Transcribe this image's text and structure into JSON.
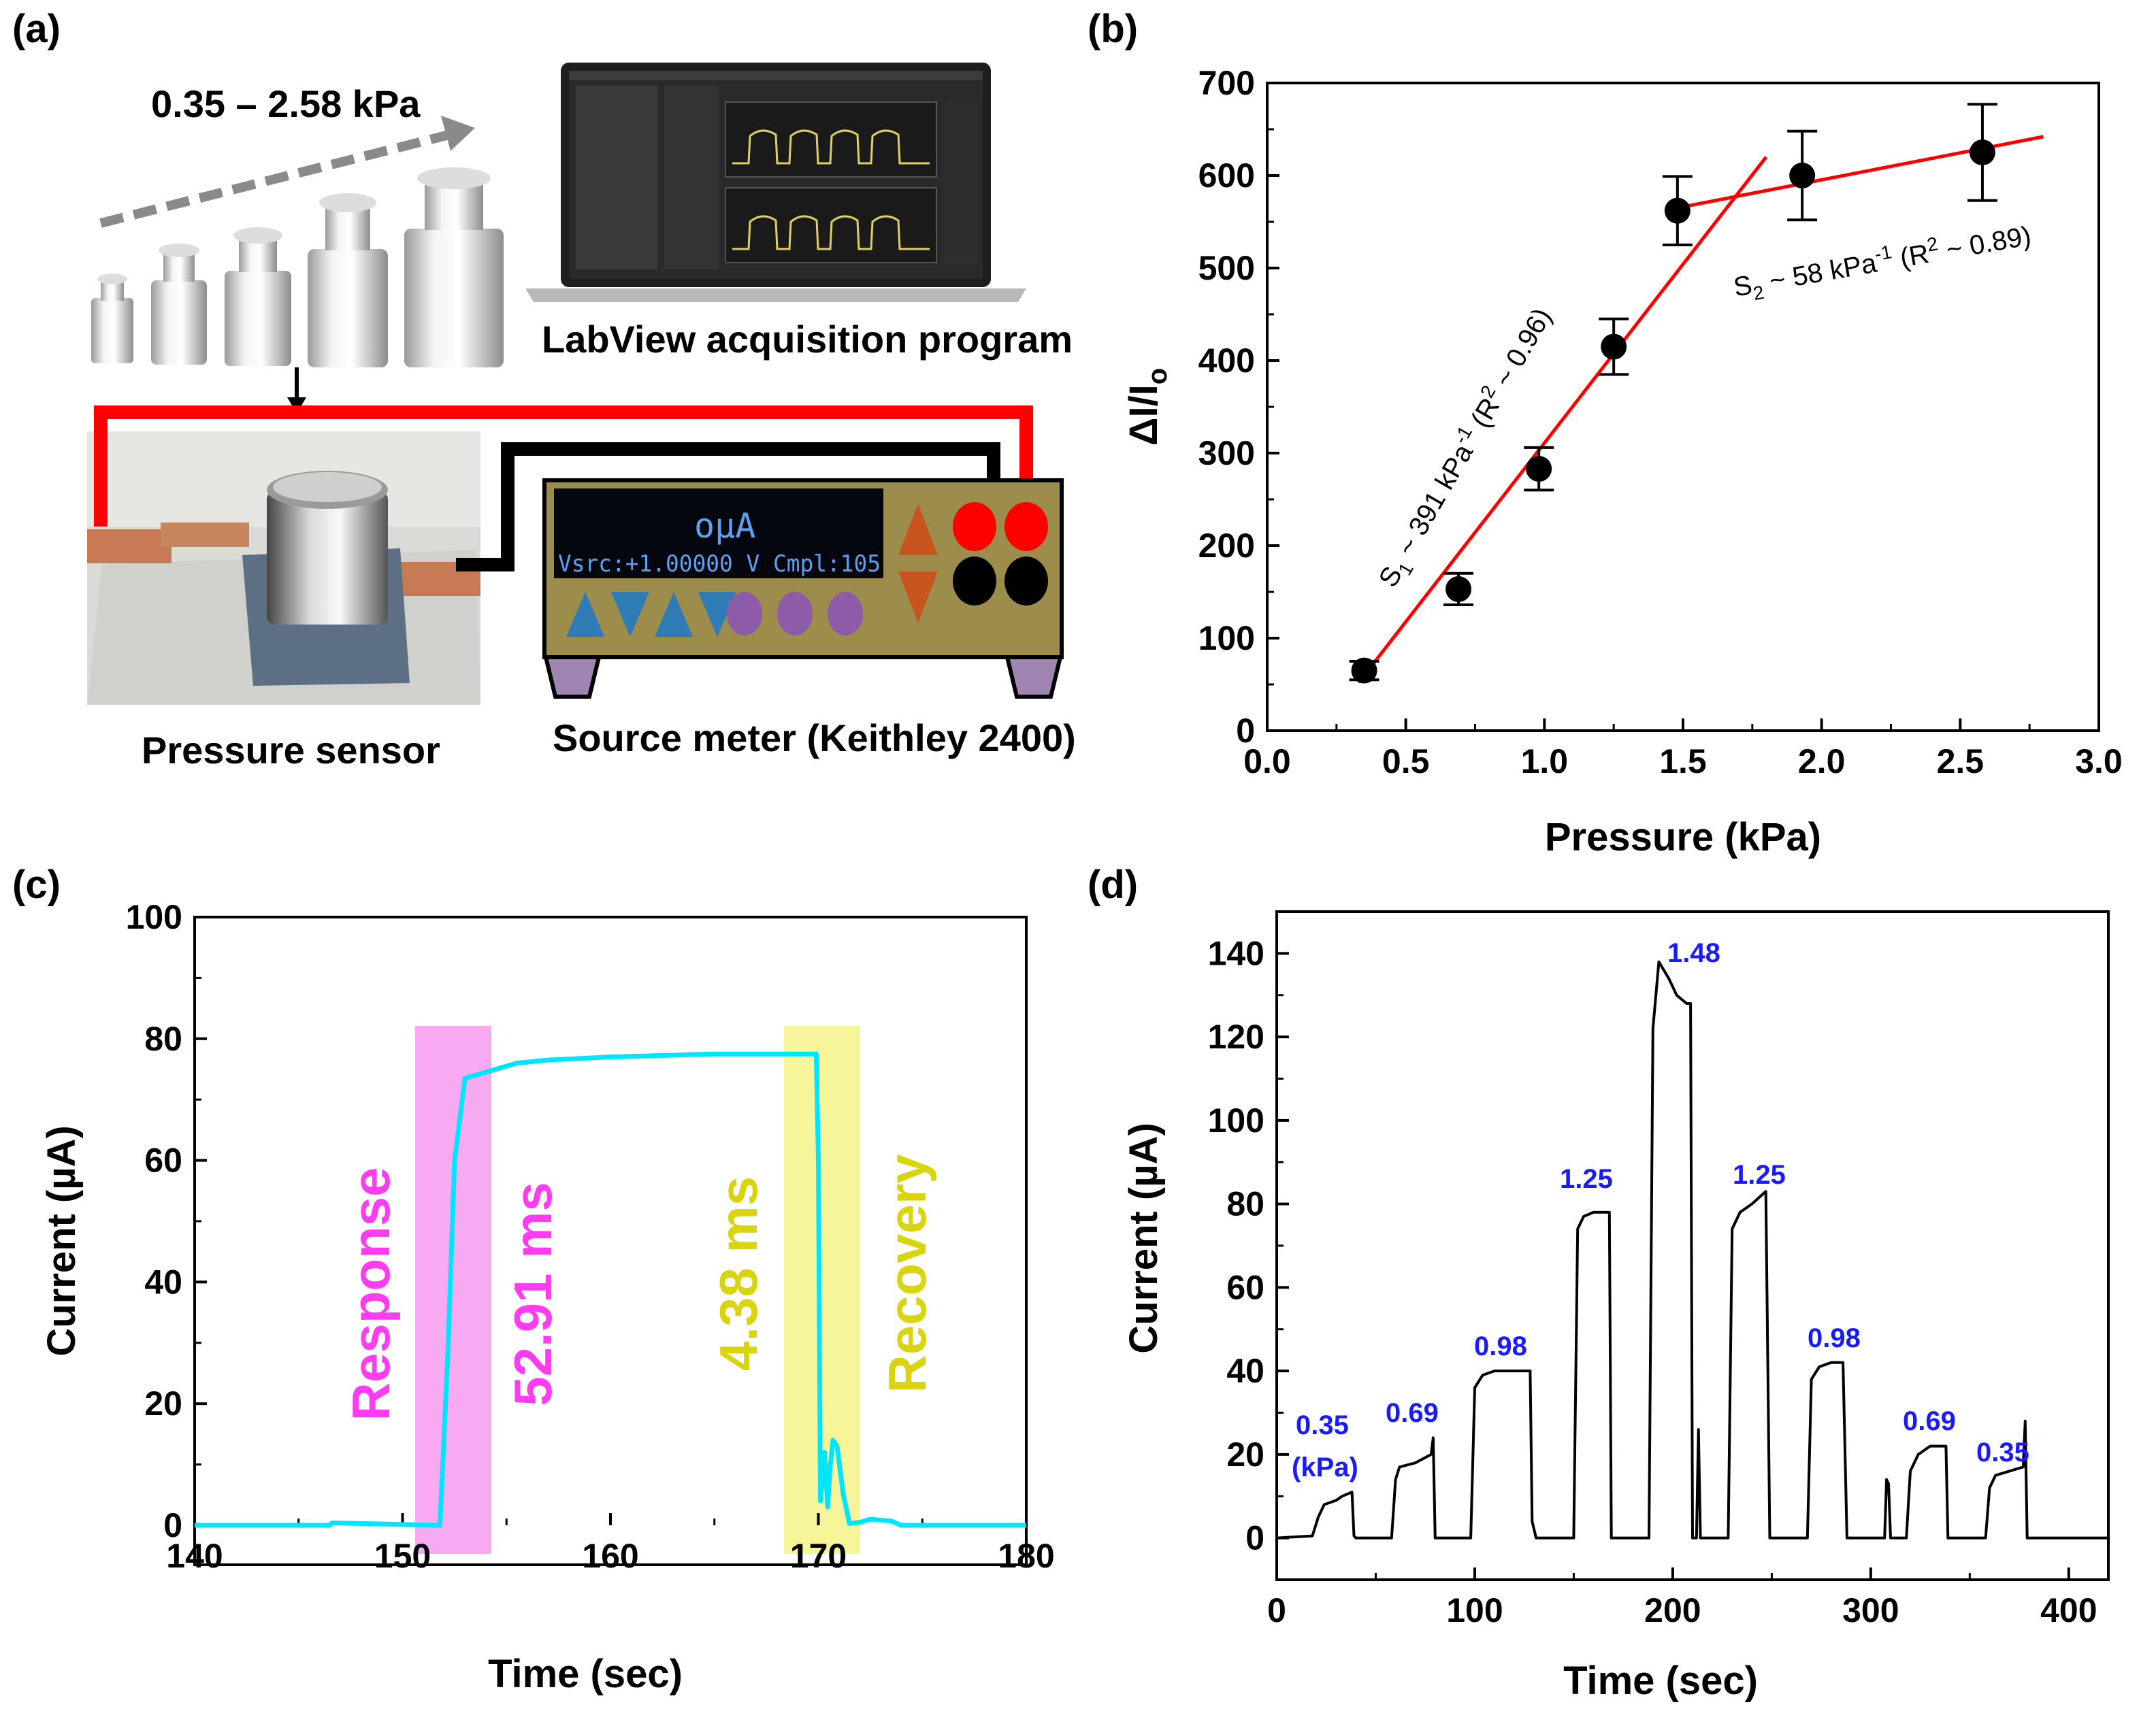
{
  "panel_labels": [
    "(a)",
    "(b)",
    "(c)",
    "(d)"
  ],
  "setup": {
    "pressure_range": "0.35 – 2.58 kPa",
    "labview_caption": "LabView acquisition program",
    "sensor_caption": "Pressure sensor",
    "meter_caption": "Source meter (Keithley 2400)",
    "meter_display_top": "oµA",
    "meter_display_bottom": "Vsrc:+1.00000 V  Cmpl:105"
  },
  "chart_data": [
    {
      "id": "b",
      "type": "scatter",
      "xlabel": "Pressure (kPa)",
      "ylabel": "ΔI/I",
      "ylabel_sub": "o",
      "xlim": [
        0,
        3.0
      ],
      "ylim": [
        0,
        700
      ],
      "xticks": [
        "0.0",
        "0.5",
        "1.0",
        "1.5",
        "2.0",
        "2.5",
        "3.0"
      ],
      "yticks": [
        "0",
        "100",
        "200",
        "300",
        "400",
        "500",
        "600",
        "700"
      ],
      "x": [
        0.35,
        0.69,
        0.98,
        1.25,
        1.48,
        1.93,
        2.58
      ],
      "y": [
        65,
        153,
        283,
        415,
        562,
        600,
        625
      ],
      "yerr": [
        10,
        17,
        23,
        30,
        37,
        48,
        52
      ],
      "fits": [
        {
          "name": "S1",
          "x": [
            0.33,
            1.8
          ],
          "y": [
            52,
            620
          ]
        },
        {
          "name": "S2",
          "x": [
            1.48,
            2.8
          ],
          "y": [
            565,
            642
          ]
        }
      ],
      "annotations": {
        "s1_main": "S",
        "s1_sub": "1",
        "s1_mid": " ~ 391 kPa",
        "s1_sup": "-1",
        "s1_r": " (R",
        "s1_r_sup": "2",
        "s1_end": " ~ 0.96)",
        "s2_main": "S",
        "s2_sub": "2",
        "s2_mid": " ~ 58 kPa",
        "s2_sup": "-1",
        "s2_r": " (R",
        "s2_r_sup": "2",
        "s2_end": " ~ 0.89)"
      }
    },
    {
      "id": "c",
      "type": "line",
      "xlabel": "Time (sec)",
      "ylabel": "Current (µA)",
      "xlim": [
        140,
        180
      ],
      "ylim": [
        0,
        100
      ],
      "xticks": [
        "140",
        "150",
        "160",
        "170",
        "180"
      ],
      "yticks": [
        "0",
        "20",
        "40",
        "60",
        "80",
        "100"
      ],
      "x": [
        140,
        146.5,
        146.6,
        151.8,
        152.2,
        152.5,
        153.0,
        154,
        155.5,
        157,
        160,
        165,
        169.9,
        170.0,
        170.1,
        170.3,
        170.45,
        170.55,
        170.7,
        170.9,
        171.2,
        171.5,
        172,
        172.5,
        173.5,
        174,
        180
      ],
      "y": [
        0,
        0,
        0.4,
        0,
        30,
        60,
        73.5,
        74.5,
        76,
        76.5,
        77,
        77.5,
        77.5,
        60,
        4,
        12,
        3,
        9,
        14,
        13,
        5,
        0.3,
        0.5,
        1,
        0.7,
        0,
        0
      ],
      "color": "#00e5ff",
      "response_label": "Response",
      "response_time": "52.91 ms",
      "recovery_label": "Recovery",
      "recovery_time": "4.38 ms"
    },
    {
      "id": "d",
      "type": "line",
      "xlabel": "Time (sec)",
      "ylabel": "Current (µA)",
      "xlim": [
        0,
        420
      ],
      "ylim": [
        -10,
        150
      ],
      "xticks": [
        "0",
        "100",
        "200",
        "300",
        "400"
      ],
      "yticks": [
        "0",
        "20",
        "40",
        "60",
        "80",
        "100",
        "120",
        "140"
      ],
      "x": [
        0,
        18,
        21,
        24,
        30,
        33,
        38,
        39,
        40,
        58,
        60,
        62,
        70,
        78,
        79,
        80,
        98,
        100,
        104,
        110,
        120,
        128,
        129,
        130,
        131,
        132,
        150,
        152,
        155,
        160,
        168,
        169,
        170,
        188,
        190,
        193,
        198,
        202,
        207,
        209,
        210,
        212,
        213,
        214,
        215,
        228,
        230,
        234,
        240,
        247,
        249,
        250,
        268,
        270,
        274,
        280,
        286,
        288,
        289,
        307,
        308,
        309,
        310,
        318,
        320,
        324,
        330,
        338,
        339,
        340,
        358,
        360,
        363,
        370,
        377,
        378,
        379,
        380,
        420
      ],
      "y": [
        0,
        0.5,
        5,
        8,
        9,
        10,
        11,
        0.5,
        0,
        0,
        14,
        17,
        18,
        20,
        24,
        0,
        0,
        36,
        39,
        40,
        40,
        40,
        4,
        2,
        0,
        0,
        0,
        74,
        77,
        78,
        78,
        0,
        0,
        0,
        122,
        138,
        134,
        130,
        128,
        128,
        0,
        0,
        26,
        0,
        0,
        0,
        74,
        78,
        80,
        83,
        0,
        0,
        0,
        38,
        41,
        42,
        42,
        0,
        0,
        0,
        14,
        13,
        0,
        0,
        16,
        20,
        22,
        22,
        0,
        0,
        0,
        12,
        15,
        16,
        17,
        28,
        0,
        0,
        0
      ],
      "color": "#000000",
      "peak_labels": [
        "0.35",
        "(kPa)",
        "0.69",
        "0.98",
        "1.25",
        "1.48",
        "1.25",
        "0.98",
        "0.69",
        "0.35"
      ]
    }
  ]
}
